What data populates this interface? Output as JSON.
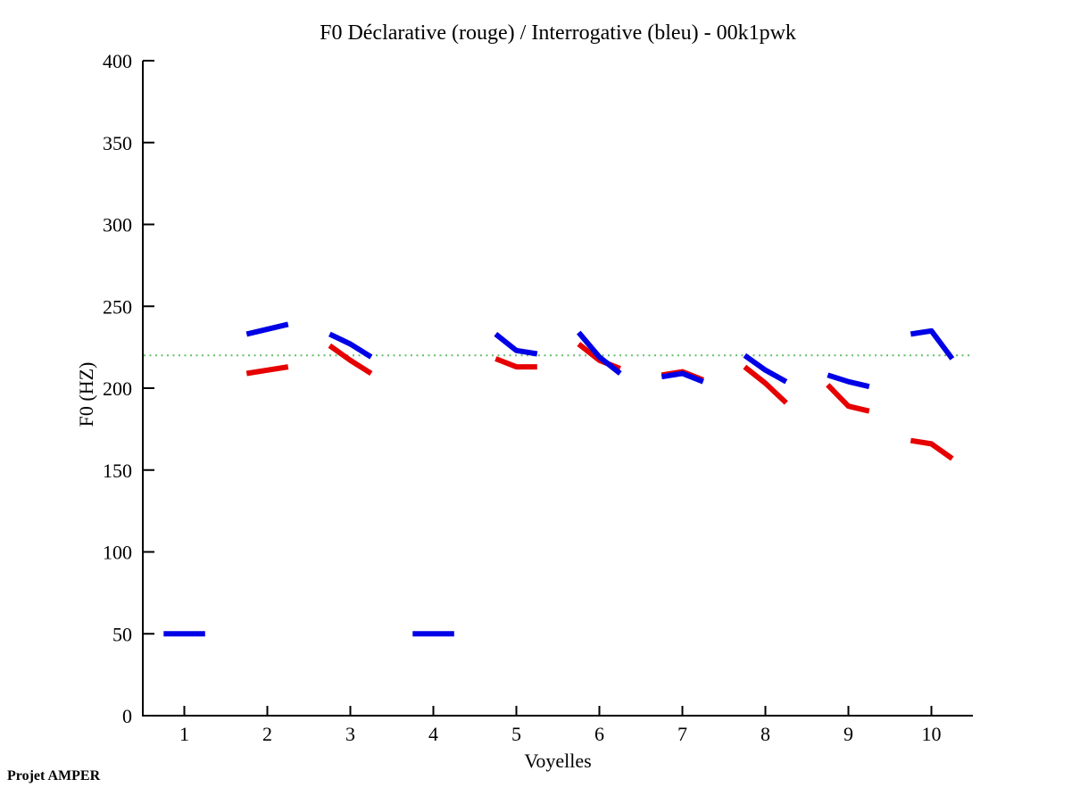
{
  "footer": "Projet AMPER",
  "chart_data": {
    "type": "line",
    "title": "F0 Déclarative (rouge) / Interrogative (bleu) - 00k1pwk",
    "xlabel": "Voyelles",
    "ylabel": "F0 (HZ)",
    "xlim": [
      0.5,
      10.5
    ],
    "ylim": [
      0,
      400
    ],
    "xticks": [
      1,
      2,
      3,
      4,
      5,
      6,
      7,
      8,
      9,
      10
    ],
    "yticks": [
      0,
      50,
      100,
      150,
      200,
      250,
      300,
      350,
      400
    ],
    "grid": false,
    "legend_position": "none",
    "reference_line": {
      "y": 220,
      "color": "#63bf6a",
      "style": "dotted"
    },
    "point_offsets": [
      -0.25,
      0,
      0.25
    ],
    "series": [
      {
        "id": "declarative",
        "name": "Déclarative (rouge)",
        "color": "#e60000",
        "vowels": [
          null,
          [
            209,
            211,
            213
          ],
          [
            226,
            217,
            209
          ],
          null,
          [
            218,
            213,
            213
          ],
          [
            227,
            217,
            212
          ],
          [
            208,
            210,
            205
          ],
          [
            213,
            203,
            191
          ],
          [
            202,
            189,
            186
          ],
          [
            168,
            166,
            157
          ]
        ]
      },
      {
        "id": "interrogative",
        "name": "Interrogative (bleu)",
        "color": "#0000e6",
        "vowels": [
          [
            50,
            50,
            50
          ],
          [
            233,
            236,
            239
          ],
          [
            233,
            227,
            219
          ],
          [
            50,
            50,
            50
          ],
          [
            233,
            223,
            221
          ],
          [
            234,
            219,
            209
          ],
          [
            207,
            209,
            204
          ],
          [
            220,
            211,
            204
          ],
          [
            208,
            204,
            201
          ],
          [
            233,
            235,
            218
          ]
        ]
      }
    ]
  }
}
